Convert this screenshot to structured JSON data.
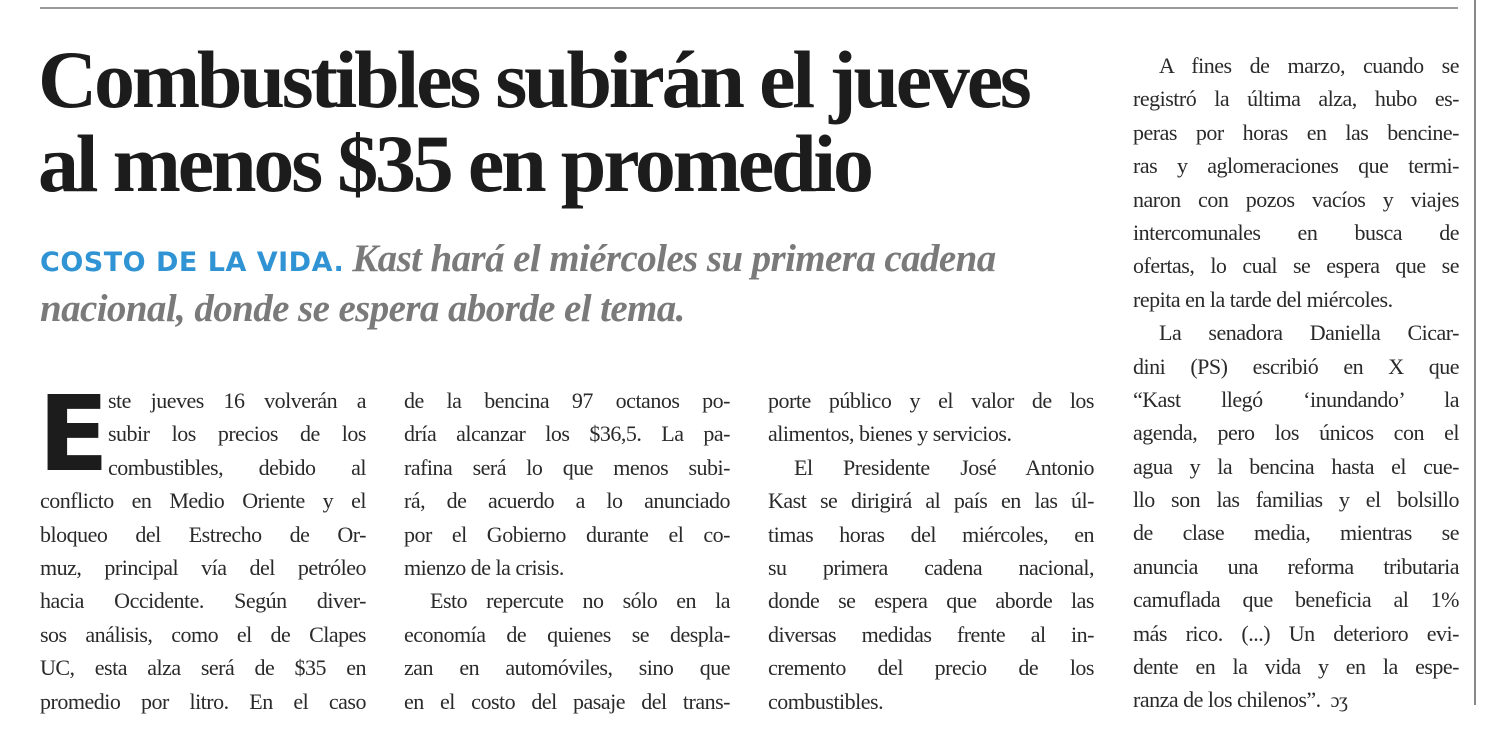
{
  "headline": {
    "lines": [
      "Combustibles subirán el jueves",
      "al menos $35 en promedio"
    ]
  },
  "subtitle": {
    "kicker": "COSTO DE LA VIDA.",
    "text": "Kast hará el miércoles su primera cadena nacional, donde se espera aborde el tema."
  },
  "body": {
    "drop_cap": "E",
    "columns": [
      [
        "ste jueves 16 volverán a",
        "subir los precios de los",
        "combustibles, debido al",
        "conflicto en Medio Oriente y el",
        "bloqueo del Estrecho de Or-",
        "muz, principal vía del petróleo",
        "hacia Occidente. Según diver-",
        "sos análisis, como el de Clapes",
        "UC, esta alza será de $35 en",
        "promedio por litro. En el caso"
      ],
      [
        "de la bencina 97 octanos po-",
        "dría alcanzar los $36,5. La pa-",
        "rafina será lo que menos subi-",
        "rá, de acuerdo a lo anunciado",
        "por el Gobierno durante el co-",
        "mienzo de la crisis.",
        "Esto repercute no sólo en la",
        "economía de quienes se despla-",
        "zan en automóviles, sino que",
        "en el costo del pasaje del trans-"
      ],
      [
        "porte público y el valor de los",
        "alimentos, bienes y servicios.",
        "El Presidente José Antonio",
        "Kast se dirigirá al país en las úl-",
        "timas horas del miércoles, en",
        "su primera cadena nacional,",
        "donde se espera que aborde las",
        "diversas medidas frente al in-",
        "cremento del precio de los",
        "combustibles."
      ],
      [
        "A fines de marzo, cuando se",
        "registró la última alza, hubo es-",
        "peras por horas en las bencine-",
        "ras y aglomeraciones que termi-",
        "naron con pozos vacíos y viajes",
        "intercomunales en busca de",
        "ofertas, lo cual se espera que se",
        "repita en la tarde del miércoles.",
        "La senadora Daniella Cicar-",
        "dini (PS) escribió en X que",
        "“Kast llegó ‘inundando’ la",
        "agenda, pero los únicos con el",
        "agua y la bencina hasta el cue-",
        "llo son las familias y el bolsillo",
        "de clase media, mientras se",
        "anuncia una reforma tributaria",
        "camuflada que beneficia al 1%",
        "más rico. (...) Un deterioro evi-",
        "dente en la vida y en la espe-",
        "ranza de los chilenos”."
      ]
    ],
    "end_mark": "ɔʒ"
  }
}
